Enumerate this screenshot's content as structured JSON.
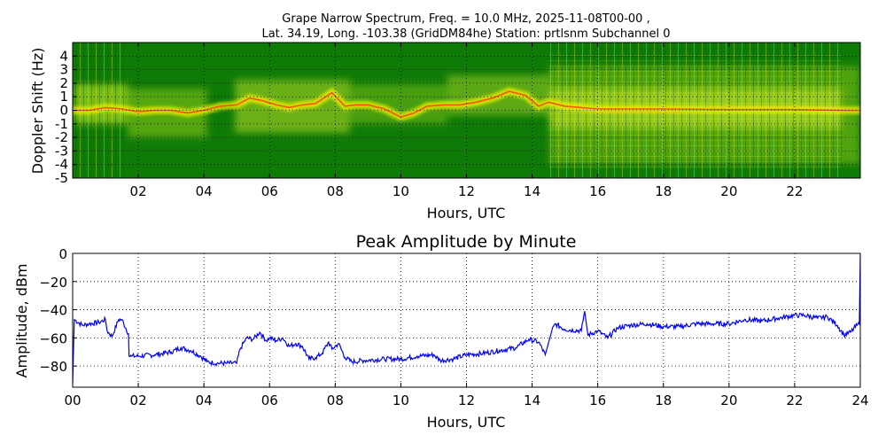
{
  "figure": {
    "title_line1": "Grape Narrow Spectrum, Freq. = 10.0 MHz, 2025-11-08T00-00 ,",
    "title_line2": "Lat.  34.19, Long. -103.38 (GridDM84he) Station: prtlsnm Subchannel 0"
  },
  "chart_data": [
    {
      "type": "heatmap",
      "title": "",
      "xlabel": "Hours, UTC",
      "ylabel": "Doppler Shift (Hz)",
      "xlim": [
        0,
        24
      ],
      "ylim": [
        -5,
        5
      ],
      "x_ticks": [
        "02",
        "04",
        "06",
        "08",
        "10",
        "12",
        "14",
        "16",
        "18",
        "20",
        "22"
      ],
      "x_tick_values": [
        2,
        4,
        6,
        8,
        10,
        12,
        14,
        16,
        18,
        20,
        22
      ],
      "y_ticks": [
        "4",
        "3",
        "2",
        "1",
        "0",
        "-1",
        "-2",
        "-3",
        "-4",
        "-5"
      ],
      "y_tick_values": [
        4,
        3,
        2,
        1,
        0,
        -1,
        -2,
        -3,
        -4,
        -5
      ],
      "grid": true,
      "colors": {
        "background": "#0f7b07",
        "mid": "#7ec21b",
        "bright": "#f0f000",
        "peak": "#ff3c00"
      },
      "doppler_trace": [
        [
          0.0,
          0.0
        ],
        [
          0.5,
          0.0
        ],
        [
          1.0,
          0.2
        ],
        [
          1.5,
          0.1
        ],
        [
          2.0,
          -0.1
        ],
        [
          2.5,
          0.0
        ],
        [
          3.0,
          0.0
        ],
        [
          3.5,
          -0.2
        ],
        [
          4.0,
          0.0
        ],
        [
          4.5,
          0.3
        ],
        [
          5.0,
          0.4
        ],
        [
          5.4,
          0.9
        ],
        [
          5.8,
          0.7
        ],
        [
          6.2,
          0.4
        ],
        [
          6.6,
          0.2
        ],
        [
          7.0,
          0.4
        ],
        [
          7.4,
          0.5
        ],
        [
          7.9,
          1.3
        ],
        [
          8.3,
          0.3
        ],
        [
          8.6,
          0.4
        ],
        [
          9.0,
          0.4
        ],
        [
          9.5,
          0.1
        ],
        [
          10.0,
          -0.5
        ],
        [
          10.4,
          -0.2
        ],
        [
          10.8,
          0.3
        ],
        [
          11.3,
          0.4
        ],
        [
          11.8,
          0.4
        ],
        [
          12.3,
          0.6
        ],
        [
          12.8,
          0.9
        ],
        [
          13.3,
          1.4
        ],
        [
          13.8,
          1.1
        ],
        [
          14.2,
          0.3
        ],
        [
          14.5,
          0.6
        ],
        [
          15.0,
          0.3
        ],
        [
          16.0,
          0.1
        ],
        [
          18.0,
          0.1
        ],
        [
          20.0,
          0.05
        ],
        [
          22.0,
          0.05
        ],
        [
          23.4,
          0.0
        ],
        [
          24.0,
          0.0
        ]
      ]
    },
    {
      "type": "line",
      "title": "Peak Amplitude by Minute",
      "xlabel": "Hours, UTC",
      "ylabel": "Amplitude, dBm",
      "xlim": [
        0,
        24
      ],
      "ylim": [
        -95,
        0
      ],
      "x_ticks": [
        "00",
        "02",
        "04",
        "06",
        "08",
        "10",
        "12",
        "14",
        "16",
        "18",
        "20",
        "22",
        "24"
      ],
      "x_tick_values": [
        0,
        2,
        4,
        6,
        8,
        10,
        12,
        14,
        16,
        18,
        20,
        22,
        24
      ],
      "y_ticks": [
        "0",
        "−20",
        "−40",
        "−60",
        "−80"
      ],
      "y_tick_values": [
        0,
        -20,
        -40,
        -60,
        -80
      ],
      "grid": true,
      "color": "#0000ff",
      "series": [
        {
          "x": [
            0.0,
            0.05,
            0.3,
            0.5,
            0.8,
            1.0,
            1.05,
            1.2,
            1.4,
            1.5,
            1.7,
            1.72,
            1.8,
            2.0,
            2.5,
            3.0,
            3.3,
            3.6,
            3.9,
            4.1,
            4.4,
            4.7,
            5.0,
            5.1,
            5.3,
            5.5,
            5.7,
            5.9,
            6.0,
            6.2,
            6.4,
            6.6,
            6.8,
            7.0,
            7.2,
            7.4,
            7.6,
            7.8,
            7.9,
            8.1,
            8.3,
            8.5,
            8.9,
            9.5,
            10.0,
            10.5,
            11.0,
            11.2,
            11.6,
            12.0,
            12.5,
            13.0,
            13.5,
            13.9,
            14.2,
            14.4,
            14.6,
            14.7,
            15.0,
            15.5,
            15.6,
            15.7,
            16.0,
            16.3,
            16.6,
            17.0,
            17.5,
            18.0,
            18.5,
            19.0,
            19.5,
            20.0,
            20.5,
            21.0,
            21.5,
            22.0,
            22.3,
            22.7,
            23.0,
            23.3,
            23.5,
            23.7,
            23.9,
            23.97,
            24.0
          ],
          "values": [
            -93,
            -47,
            -51,
            -50,
            -49,
            -47,
            -55,
            -59,
            -47,
            -47,
            -57,
            -73,
            -73,
            -73,
            -72,
            -70,
            -67,
            -69,
            -73,
            -77,
            -78,
            -78,
            -78,
            -68,
            -60,
            -61,
            -56,
            -62,
            -60,
            -62,
            -60,
            -66,
            -64,
            -66,
            -75,
            -74,
            -71,
            -63,
            -68,
            -64,
            -74,
            -77,
            -76,
            -75,
            -75,
            -73,
            -72,
            -76,
            -75,
            -72,
            -71,
            -69,
            -67,
            -61,
            -63,
            -72,
            -55,
            -50,
            -54,
            -55,
            -41,
            -58,
            -55,
            -60,
            -53,
            -51,
            -50,
            -52,
            -52,
            -50,
            -50,
            -50,
            -47,
            -48,
            -46,
            -44,
            -44,
            -46,
            -45,
            -51,
            -58,
            -56,
            -51,
            -50,
            -1
          ]
        }
      ]
    }
  ]
}
